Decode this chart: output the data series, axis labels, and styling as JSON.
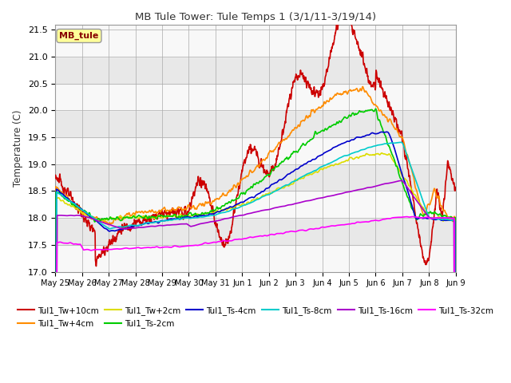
{
  "title": "MB Tule Tower: Tule Temps 1 (3/1/11-3/19/14)",
  "ylabel": "Temperature (C)",
  "ylim": [
    17.0,
    21.6
  ],
  "background_color": "#ffffff",
  "plot_bg_color": "#f0f0f0",
  "legend_box_label": "MB_tule",
  "legend_box_color": "#880000",
  "legend_box_bg": "#ffff99",
  "series": [
    {
      "label": "Tul1_Tw+10cm",
      "color": "#cc0000",
      "lw": 1.2
    },
    {
      "label": "Tul1_Tw+4cm",
      "color": "#ff8c00",
      "lw": 1.2
    },
    {
      "label": "Tul1_Tw+2cm",
      "color": "#dddd00",
      "lw": 1.2
    },
    {
      "label": "Tul1_Ts-2cm",
      "color": "#00cc00",
      "lw": 1.2
    },
    {
      "label": "Tul1_Ts-4cm",
      "color": "#0000cc",
      "lw": 1.2
    },
    {
      "label": "Tul1_Ts-8cm",
      "color": "#00cccc",
      "lw": 1.2
    },
    {
      "label": "Tul1_Ts-16cm",
      "color": "#aa00cc",
      "lw": 1.2
    },
    {
      "label": "Tul1_Ts-32cm",
      "color": "#ff00ff",
      "lw": 1.2
    }
  ],
  "xtick_labels": [
    "May 25",
    "May 26",
    "May 27",
    "May 28",
    "May 29",
    "May 30",
    "May 31",
    "Jun 1",
    "Jun 2",
    "Jun 3",
    "Jun 4",
    "Jun 5",
    "Jun 6",
    "Jun 7",
    "Jun 8",
    "Jun 9"
  ],
  "band_colors": [
    "#f8f8f8",
    "#e8e8e8"
  ]
}
